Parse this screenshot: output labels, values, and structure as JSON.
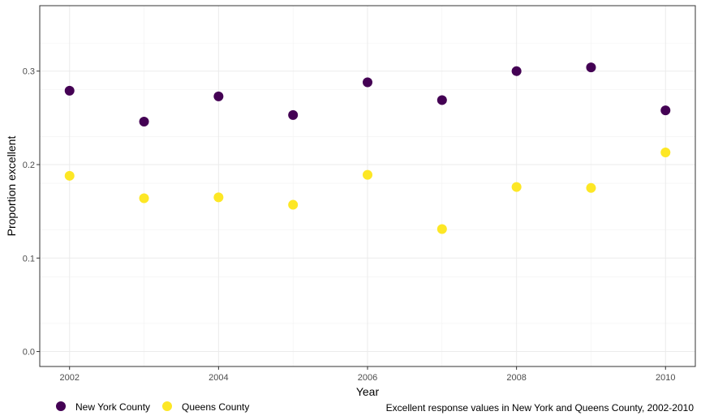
{
  "chart_data": {
    "type": "scatter",
    "xlabel": "Year",
    "ylabel": "Proportion excellent",
    "caption": "Excellent response values in New York and Queens County, 2002-2010",
    "xlim": [
      2001.6,
      2010.4
    ],
    "ylim": [
      -0.016,
      0.37
    ],
    "x_ticks": [
      2002,
      2004,
      2006,
      2008,
      2010
    ],
    "x_tick_labels": [
      "2002",
      "2004",
      "2006",
      "2008",
      "2010"
    ],
    "y_ticks": [
      0.0,
      0.1,
      0.2,
      0.3
    ],
    "y_tick_labels": [
      "0.0",
      "0.1",
      "0.2",
      "0.3"
    ],
    "grid": true,
    "legend_position": "bottom-left",
    "x": [
      2002,
      2003,
      2004,
      2005,
      2006,
      2007,
      2008,
      2009,
      2010
    ],
    "series": [
      {
        "name": "New York County",
        "color": "#440154",
        "values": [
          0.279,
          0.246,
          0.273,
          0.253,
          0.288,
          0.269,
          0.3,
          0.304,
          0.258
        ]
      },
      {
        "name": "Queens County",
        "color": "#FDE725",
        "values": [
          0.188,
          0.164,
          0.165,
          0.157,
          0.189,
          0.131,
          0.176,
          0.175,
          0.213
        ]
      }
    ]
  }
}
